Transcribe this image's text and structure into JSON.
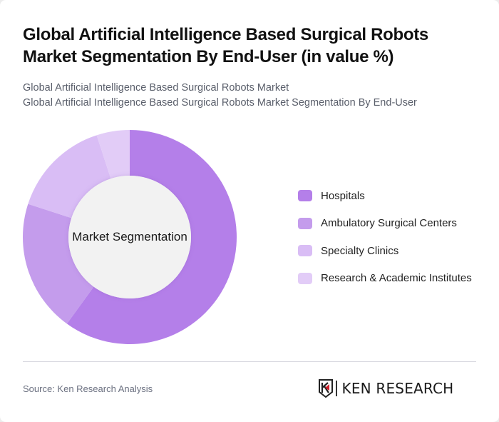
{
  "header": {
    "title": "Global Artificial Intelligence Based Surgical Robots Market Segmentation By End-User (in value %)",
    "subtitle_line1": "Global Artificial Intelligence Based Surgical Robots Market",
    "subtitle_line2": "Global Artificial Intelligence Based Surgical Robots Market Segmentation By End-User"
  },
  "chart": {
    "center_label": "Market Segmentation"
  },
  "legend": {
    "items": [
      {
        "label": "Hospitals",
        "color": "#B47FE9"
      },
      {
        "label": "Ambulatory Surgical Centers",
        "color": "#C49CEC"
      },
      {
        "label": "Specialty Clinics",
        "color": "#D9BDF5"
      },
      {
        "label": "Research & Academic Institutes",
        "color": "#E2CCF7"
      }
    ]
  },
  "footer": {
    "source": "Source: Ken Research Analysis",
    "logo_text": "KEN RESEARCH"
  },
  "chart_data": {
    "type": "pie",
    "variant": "donut",
    "title": "Global Artificial Intelligence Based Surgical Robots Market Segmentation By End-User (in value %)",
    "center_label": "Market Segmentation",
    "categories": [
      "Hospitals",
      "Ambulatory Surgical Centers",
      "Specialty Clinics",
      "Research & Academic Institutes"
    ],
    "values": [
      60,
      20,
      15,
      5
    ],
    "colors": [
      "#B47FE9",
      "#C49CEC",
      "#D9BDF5",
      "#E2CCF7"
    ],
    "unit": "%",
    "legend_position": "right",
    "start_angle": "12 o'clock, clockwise"
  }
}
